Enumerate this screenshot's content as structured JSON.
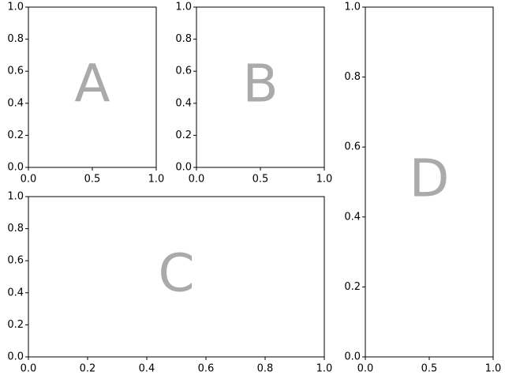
{
  "chart_data": [
    {
      "type": "axes",
      "annotation": "A",
      "xlim": [
        0,
        1
      ],
      "ylim": [
        0,
        1
      ],
      "xticks": [
        {
          "value": 0,
          "label": "0.0"
        },
        0.5,
        {
          "value": 1,
          "label": "1.0"
        }
      ],
      "yticks": [
        {
          "value": 0,
          "label": "0.0"
        },
        0.2,
        0.4,
        0.6,
        0.8,
        {
          "value": 1,
          "label": "1.0"
        }
      ]
    },
    {
      "type": "axes",
      "annotation": "B",
      "xlim": [
        0,
        1
      ],
      "ylim": [
        0,
        1
      ],
      "xticks": [
        {
          "value": 0,
          "label": "0.0"
        },
        0.5,
        {
          "value": 1,
          "label": "1.0"
        }
      ],
      "yticks": [
        {
          "value": 0,
          "label": "0.0"
        },
        0.2,
        0.4,
        0.6,
        0.8,
        {
          "value": 1,
          "label": "1.0"
        }
      ]
    },
    {
      "type": "axes",
      "annotation": "C",
      "xlim": [
        0,
        1
      ],
      "ylim": [
        0,
        1
      ],
      "xticks": [
        {
          "value": 0,
          "label": "0.0"
        },
        0.2,
        0.4,
        0.6,
        0.8,
        {
          "value": 1,
          "label": "1.0"
        }
      ],
      "yticks": [
        {
          "value": 0,
          "label": "0.0"
        },
        0.2,
        0.4,
        0.6,
        0.8,
        {
          "value": 1,
          "label": "1.0"
        }
      ]
    },
    {
      "type": "axes",
      "annotation": "D",
      "xlim": [
        0,
        1
      ],
      "ylim": [
        0,
        1
      ],
      "xticks": [
        {
          "value": 0,
          "label": "0.0"
        },
        0.5,
        {
          "value": 1,
          "label": "1.0"
        }
      ],
      "yticks": [
        {
          "value": 0,
          "label": "0.0"
        },
        0.2,
        0.4,
        0.6,
        0.8,
        {
          "value": 1,
          "label": "1.0"
        }
      ]
    }
  ]
}
